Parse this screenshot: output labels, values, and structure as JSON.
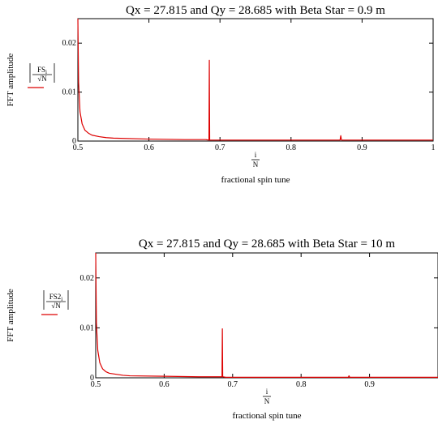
{
  "chart_data": [
    {
      "type": "line",
      "title": "Qx = 27.815 and Qy = 28.685 with Beta Star = 0.9 m",
      "xlabel_fraction": {
        "numerator": "i",
        "denominator": "N"
      },
      "xlabel": "fractional spin tune",
      "ylabel": "FFT amplitude",
      "legend_expression": {
        "numerator": "FS",
        "subscript": "i",
        "denominator": "√N"
      },
      "xlim": [
        0.5,
        1.0
      ],
      "ylim": [
        0,
        0.025
      ],
      "x_ticks": [
        "0.5",
        "0.6",
        "0.7",
        "0.8",
        "0.9",
        "1"
      ],
      "y_ticks": [
        "0",
        "0.01",
        "0.02"
      ],
      "grid": false,
      "series_color": "#dd0000",
      "series": [
        {
          "x": [
            0.5,
            0.501,
            0.503,
            0.506,
            0.51,
            0.515,
            0.52,
            0.53,
            0.54,
            0.55,
            0.6,
            0.65,
            0.68,
            0.6845,
            0.685,
            0.6855,
            0.69,
            0.75,
            0.8,
            0.867,
            0.869,
            0.87,
            0.871,
            0.873,
            0.9,
            0.95,
            1.0
          ],
          "y": [
            0.025,
            0.012,
            0.006,
            0.0035,
            0.0022,
            0.0016,
            0.0012,
            0.0009,
            0.0007,
            0.0006,
            0.0004,
            0.0003,
            0.0003,
            0.0002,
            0.0165,
            0.0002,
            0.0002,
            0.0002,
            0.0002,
            0.0002,
            0.0002,
            0.0011,
            0.0002,
            0.0002,
            0.0002,
            0.0002,
            0.0002
          ]
        }
      ]
    },
    {
      "type": "line",
      "title": "Qx = 27.815 and Qy = 28.685 with Beta Star = 10 m",
      "xlabel_fraction": {
        "numerator": "i",
        "denominator": "N"
      },
      "xlabel": "fractional spin tune",
      "ylabel": "FFT amplitude",
      "legend_expression": {
        "numerator": "FS2",
        "subscript": "i",
        "denominator": "√N"
      },
      "xlim": [
        0.5,
        1.0
      ],
      "ylim": [
        0,
        0.025
      ],
      "x_ticks": [
        "0.5",
        "0.6",
        "0.7",
        "0.8",
        "0.9"
      ],
      "y_ticks": [
        "0",
        "0.01",
        "0.02"
      ],
      "grid": false,
      "series_color": "#dd0000",
      "series": [
        {
          "x": [
            0.5,
            0.501,
            0.503,
            0.506,
            0.51,
            0.515,
            0.52,
            0.53,
            0.54,
            0.55,
            0.6,
            0.65,
            0.68,
            0.6845,
            0.685,
            0.6855,
            0.69,
            0.75,
            0.8,
            0.867,
            0.869,
            0.87,
            0.871,
            0.873,
            0.9,
            0.95,
            1.0
          ],
          "y": [
            0.025,
            0.011,
            0.0055,
            0.003,
            0.0018,
            0.0012,
            0.0009,
            0.0007,
            0.0005,
            0.0004,
            0.0003,
            0.0002,
            0.0002,
            0.0002,
            0.0098,
            0.0002,
            0.0001,
            0.0001,
            0.0001,
            0.0001,
            0.0001,
            0.0004,
            0.0001,
            0.0001,
            0.0001,
            0.0001,
            0.0001
          ]
        }
      ]
    }
  ]
}
